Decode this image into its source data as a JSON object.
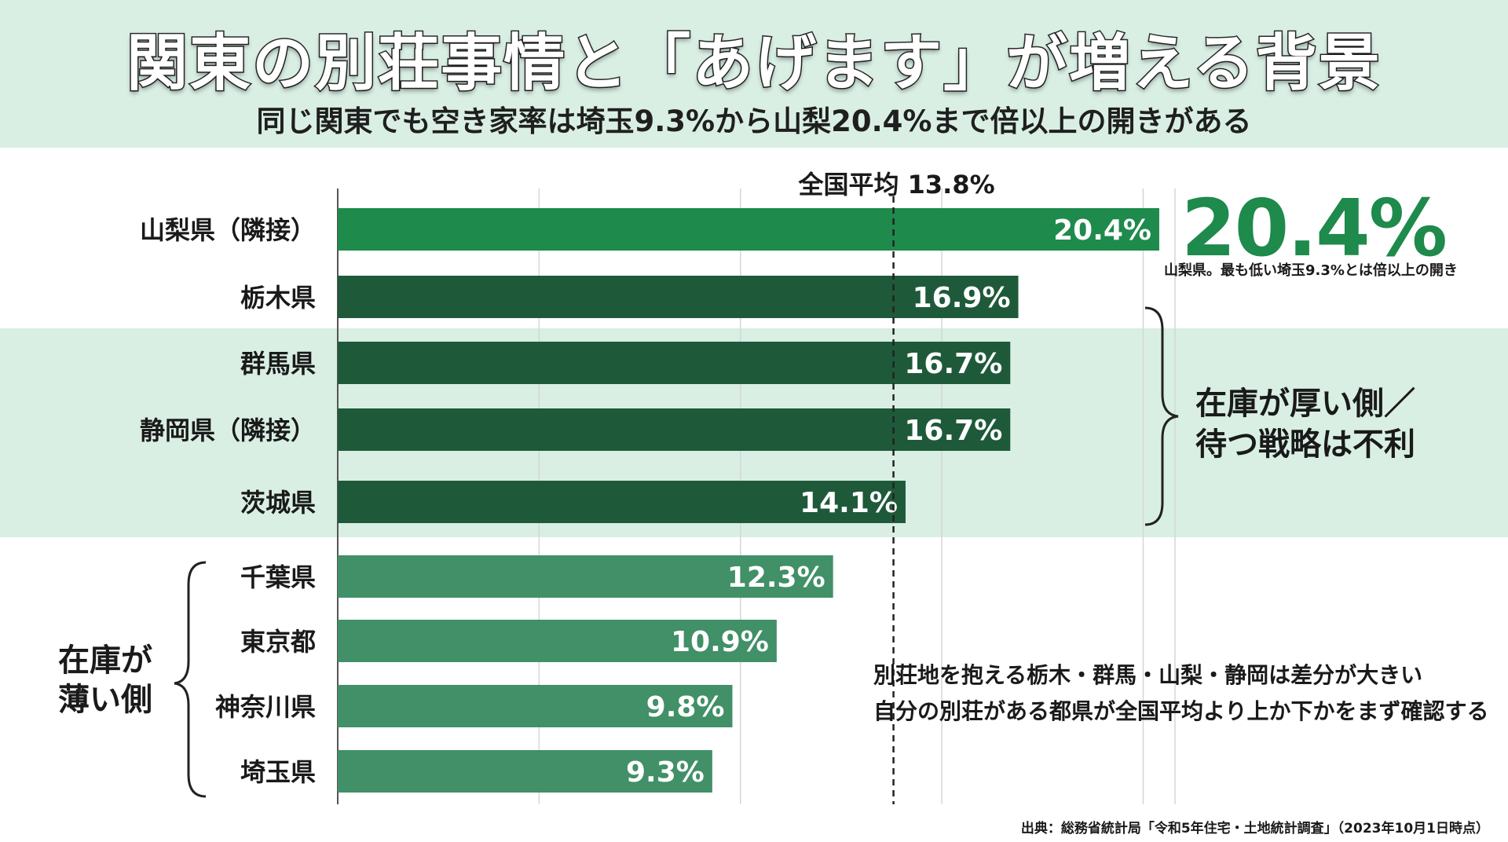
{
  "header": {
    "title": "関東の別荘事情と「あげます」が増える背景",
    "subtitle": "同じ関東でも空き家率は埼玉9.3%から山梨20.4%まで倍以上の開きがある"
  },
  "chart_data": {
    "type": "bar",
    "orientation": "horizontal",
    "categories": [
      "山梨県（隣接）",
      "栃木県",
      "群馬県",
      "静岡県（隣接）",
      "茨城県",
      "千葉県",
      "東京都",
      "神奈川県",
      "埼玉県"
    ],
    "values": [
      20.4,
      16.9,
      16.7,
      16.7,
      14.1,
      12.3,
      10.9,
      9.8,
      9.3
    ],
    "data_labels": [
      "20.4%",
      "16.9%",
      "16.7%",
      "16.7%",
      "14.1%",
      "12.3%",
      "10.9%",
      "9.8%",
      "9.3%"
    ],
    "groups": [
      "top",
      "high",
      "high",
      "high",
      "high",
      "low",
      "low",
      "low",
      "low"
    ],
    "xlim": [
      0,
      20.4
    ],
    "grid": true,
    "reference_line": {
      "value": 13.8,
      "label": "全国平均 13.8%"
    },
    "colors": {
      "top": "#1e8a4c",
      "high": "#1e5a3a",
      "low": "#419067"
    }
  },
  "callout": {
    "value": "20.4%",
    "caption": "山梨県。最も低い埼玉9.3%とは倍以上の開き"
  },
  "brace_high": {
    "label_line1": "在庫が厚い側／",
    "label_line2": "待つ戦略は不利"
  },
  "brace_low": {
    "label_line1": "在庫が",
    "label_line2": "薄い側"
  },
  "note": {
    "line1": "別荘地を抱える栃木・群馬・山梨・静岡は差分が大きい",
    "line2": "自分の別荘がある都県が全国平均より上か下かをまず確認する"
  },
  "source": "出典：総務省統計局「令和5年住宅・土地統計調査」（2023年10月1日時点）"
}
